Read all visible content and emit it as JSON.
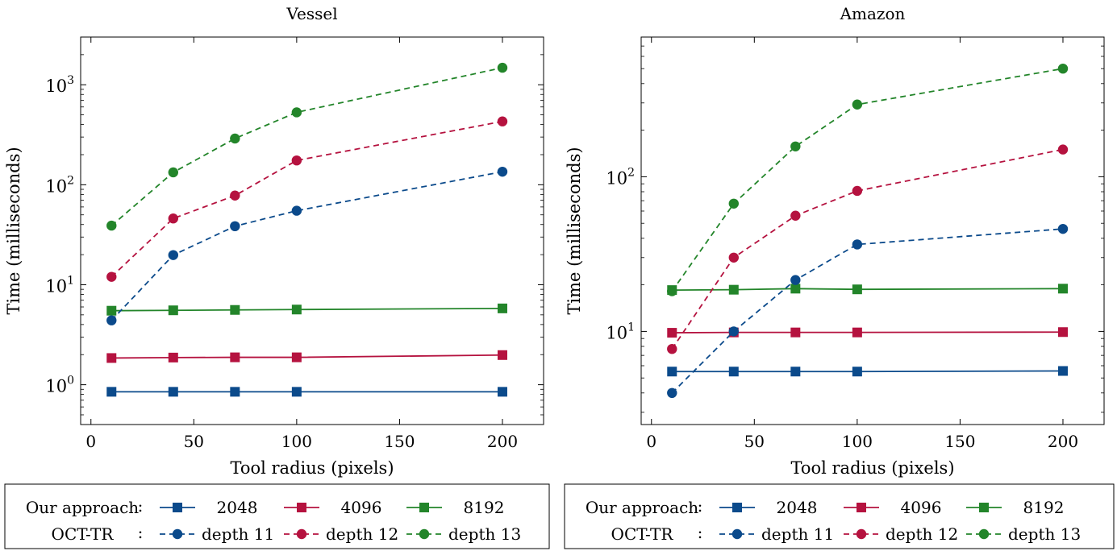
{
  "chart_data": [
    {
      "type": "line",
      "title": "Vessel",
      "xlabel": "Tool radius (pixels)",
      "ylabel": "Time (milliseconds)",
      "x": [
        10,
        40,
        70,
        100,
        200
      ],
      "xlim": [
        -5,
        220
      ],
      "ylim": [
        0.4,
        3000
      ],
      "yscale": "log",
      "xticks": [
        0,
        50,
        100,
        150,
        200
      ],
      "yticks": [
        1,
        10,
        100,
        1000
      ],
      "ytick_labels": [
        {
          "base": "10",
          "exp": "0"
        },
        {
          "base": "10",
          "exp": "1"
        },
        {
          "base": "10",
          "exp": "2"
        },
        {
          "base": "10",
          "exp": "3"
        }
      ],
      "series": [
        {
          "group": "Our approach",
          "name": "2048",
          "color": "#0b4a8b",
          "style": "solid",
          "marker": "square",
          "values": [
            0.85,
            0.85,
            0.85,
            0.85,
            0.85
          ]
        },
        {
          "group": "Our approach",
          "name": "4096",
          "color": "#b5123f",
          "style": "solid",
          "marker": "square",
          "values": [
            1.85,
            1.87,
            1.88,
            1.88,
            1.98
          ]
        },
        {
          "group": "Our approach",
          "name": "8192",
          "color": "#23852a",
          "style": "solid",
          "marker": "square",
          "values": [
            5.5,
            5.55,
            5.6,
            5.65,
            5.8
          ]
        },
        {
          "group": "OCT-TR",
          "name": "depth 11",
          "color": "#0b4a8b",
          "style": "dashed",
          "marker": "circle",
          "values": [
            4.4,
            19.8,
            38.5,
            55,
            135
          ]
        },
        {
          "group": "OCT-TR",
          "name": "depth 12",
          "color": "#b5123f",
          "style": "dashed",
          "marker": "circle",
          "values": [
            12,
            46,
            78,
            175,
            430
          ]
        },
        {
          "group": "OCT-TR",
          "name": "depth 13",
          "color": "#23852a",
          "style": "dashed",
          "marker": "circle",
          "values": [
            39,
            133,
            290,
            530,
            1480
          ]
        }
      ],
      "legend": {
        "rows": [
          {
            "label": "Our approach",
            "entries": [
              "2048",
              "4096",
              "8192"
            ]
          },
          {
            "label": "OCT-TR",
            "entries": [
              "depth 11",
              "depth 12",
              "depth 13"
            ]
          }
        ],
        "placement": "bottom"
      }
    },
    {
      "type": "line",
      "title": "Amazon",
      "xlabel": "Tool radius (pixels)",
      "ylabel": "Time (milliseconds)",
      "x": [
        10,
        40,
        70,
        100,
        200
      ],
      "xlim": [
        -5,
        220
      ],
      "ylim": [
        2.5,
        800
      ],
      "yscale": "log",
      "xticks": [
        0,
        50,
        100,
        150,
        200
      ],
      "yticks": [
        10,
        100
      ],
      "ytick_labels": [
        {
          "base": "10",
          "exp": "1"
        },
        {
          "base": "10",
          "exp": "2"
        }
      ],
      "series": [
        {
          "group": "Our approach",
          "name": "2048",
          "color": "#0b4a8b",
          "style": "solid",
          "marker": "square",
          "values": [
            5.5,
            5.5,
            5.5,
            5.5,
            5.55
          ]
        },
        {
          "group": "Our approach",
          "name": "4096",
          "color": "#b5123f",
          "style": "solid",
          "marker": "square",
          "values": [
            9.8,
            9.85,
            9.85,
            9.85,
            9.9
          ]
        },
        {
          "group": "Our approach",
          "name": "8192",
          "color": "#23852a",
          "style": "solid",
          "marker": "square",
          "values": [
            18.5,
            18.6,
            18.9,
            18.7,
            18.9
          ]
        },
        {
          "group": "OCT-TR",
          "name": "depth 11",
          "color": "#0b4a8b",
          "style": "dashed",
          "marker": "circle",
          "values": [
            4,
            10,
            21.5,
            36.5,
            46
          ]
        },
        {
          "group": "OCT-TR",
          "name": "depth 12",
          "color": "#b5123f",
          "style": "dashed",
          "marker": "circle",
          "values": [
            7.7,
            30,
            56,
            81,
            150
          ]
        },
        {
          "group": "OCT-TR",
          "name": "depth 13",
          "color": "#23852a",
          "style": "dashed",
          "marker": "circle",
          "values": [
            18.2,
            67,
            157,
            293,
            500
          ]
        }
      ],
      "legend": {
        "rows": [
          {
            "label": "Our approach",
            "entries": [
              "2048",
              "4096",
              "8192"
            ]
          },
          {
            "label": "OCT-TR",
            "entries": [
              "depth 11",
              "depth 12",
              "depth 13"
            ]
          }
        ],
        "placement": "bottom"
      }
    }
  ]
}
